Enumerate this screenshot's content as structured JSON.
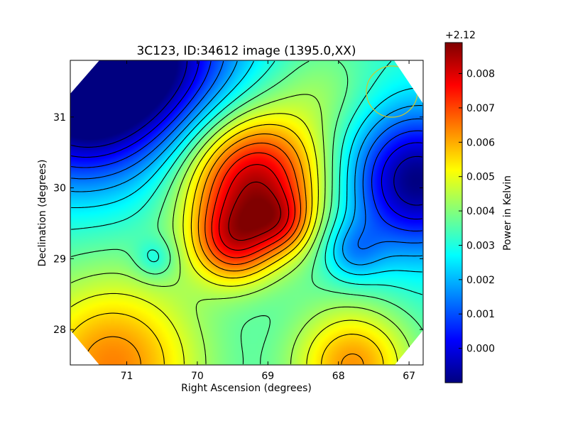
{
  "chart_data": {
    "type": "heatmap",
    "title": "3C123, ID:34612 image (1395.0,XX)",
    "xlabel": "Right Ascension (degrees)",
    "ylabel": "Declination (degrees)",
    "xlim": [
      71.8,
      66.8
    ],
    "ylim": [
      27.5,
      31.8
    ],
    "x_ticks": [
      71,
      70,
      69,
      68,
      67
    ],
    "x_tick_labels": [
      "71",
      "70",
      "69",
      "68",
      "67"
    ],
    "y_ticks": [
      28,
      29,
      30,
      31
    ],
    "y_tick_labels": [
      "28",
      "29",
      "30",
      "31"
    ],
    "grid": false,
    "colorbar": {
      "label": "Power in Kelvin",
      "offset_label": "+2.12",
      "range": [
        -0.001,
        0.0089
      ],
      "ticks": [
        0.0,
        0.001,
        0.002,
        0.003,
        0.004,
        0.005,
        0.006,
        0.007,
        0.008
      ],
      "tick_labels": [
        "0.000",
        "0.001",
        "0.002",
        "0.003",
        "0.004",
        "0.005",
        "0.006",
        "0.007",
        "0.008"
      ],
      "colormap": "jet"
    },
    "contours": true,
    "beam_circle": {
      "ra": 67.2,
      "dec": 31.4,
      "radius_deg": 0.36,
      "color": "#c8c832"
    },
    "field": {
      "base": 0.0032,
      "components": [
        {
          "ra": 69.2,
          "dec": 30.1,
          "amp": 0.0052,
          "sigma": 0.7
        },
        {
          "ra": 69.5,
          "dec": 29.2,
          "amp": 0.0028,
          "sigma": 0.4
        },
        {
          "ra": 68.8,
          "dec": 29.5,
          "amp": 0.0016,
          "sigma": 0.3
        },
        {
          "ra": 70.7,
          "dec": 31.8,
          "amp": -0.0042,
          "sigma": 0.9
        },
        {
          "ra": 71.8,
          "dec": 31.2,
          "amp": -0.0038,
          "sigma": 0.8
        },
        {
          "ra": 66.9,
          "dec": 30.1,
          "amp": -0.0042,
          "sigma": 0.7
        },
        {
          "ra": 67.8,
          "dec": 29.1,
          "amp": -0.0014,
          "sigma": 0.3
        },
        {
          "ra": 70.6,
          "dec": 29.0,
          "amp": -0.001,
          "sigma": 0.2
        },
        {
          "ra": 71.2,
          "dec": 27.5,
          "amp": 0.0032,
          "sigma": 0.9
        },
        {
          "ra": 67.8,
          "dec": 27.5,
          "amp": 0.003,
          "sigma": 0.6
        },
        {
          "ra": 68.2,
          "dec": 31.4,
          "amp": 0.0008,
          "sigma": 0.5
        }
      ]
    }
  }
}
